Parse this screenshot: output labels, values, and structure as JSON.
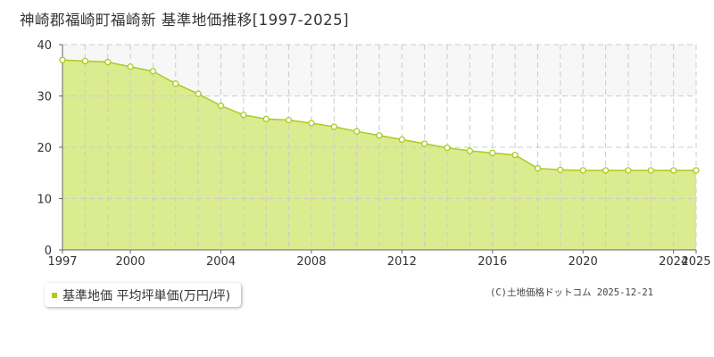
{
  "title": "神崎郡福崎町福崎新 基準地価推移[1997-2025]",
  "legend": {
    "label": "基準地価 平均坪単価(万円/坪)"
  },
  "copyright": "(C)土地価格ドットコム 2025-12-21",
  "colors": {
    "area_fill": "#dbeb8f",
    "line": "#a8cc20",
    "marker_fill": "#ffffff",
    "grid": "#cccccc",
    "upper_band": "#f7f7f7"
  },
  "chart_data": {
    "type": "area",
    "title": "神崎郡福崎町福崎新 基準地価推移[1997-2025]",
    "xlabel": "",
    "ylabel": "",
    "xlim": [
      1997,
      2025
    ],
    "ylim": [
      0,
      40
    ],
    "grid": true,
    "x_ticks": [
      1997,
      2000,
      2004,
      2008,
      2012,
      2016,
      2020,
      2024,
      2025
    ],
    "y_ticks": [
      0,
      10,
      20,
      30,
      40
    ],
    "legend_position": "bottom-left",
    "series": [
      {
        "name": "基準地価 平均坪単価(万円/坪)",
        "x": [
          1997,
          1998,
          1999,
          2000,
          2001,
          2002,
          2003,
          2004,
          2005,
          2006,
          2007,
          2008,
          2009,
          2010,
          2011,
          2012,
          2013,
          2014,
          2015,
          2016,
          2017,
          2018,
          2019,
          2020,
          2021,
          2022,
          2023,
          2024,
          2025
        ],
        "y": [
          37.0,
          36.8,
          36.6,
          35.7,
          34.8,
          32.4,
          30.4,
          28.1,
          26.3,
          25.5,
          25.3,
          24.7,
          24.0,
          23.1,
          22.3,
          21.5,
          20.7,
          19.9,
          19.3,
          18.9,
          18.5,
          15.9,
          15.6,
          15.5,
          15.5,
          15.5,
          15.5,
          15.5,
          15.5
        ]
      }
    ]
  }
}
